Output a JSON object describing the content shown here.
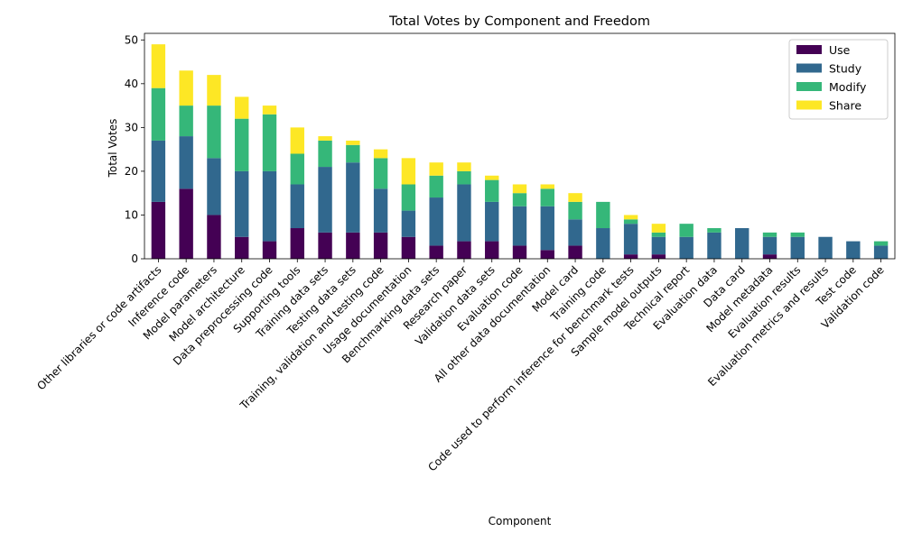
{
  "chart_data": {
    "type": "bar",
    "stacked": true,
    "title": "Total Votes by Component and Freedom",
    "xlabel": "Component",
    "ylabel": "Total Votes",
    "ylim": [
      0,
      51.5
    ],
    "yticks": [
      0,
      10,
      20,
      30,
      40,
      50
    ],
    "legend_position": "top-right",
    "categories": [
      "Other libraries or code artifacts",
      "Inference code",
      "Model parameters",
      "Model architecture",
      "Data preprocessing code",
      "Supporting tools",
      "Training data sets",
      "Testing data sets",
      "Training, validation and testing code",
      "Usage documentation",
      "Benchmarking data sets",
      "Research paper",
      "Validation data sets",
      "Evaluation code",
      "All other data documentation",
      "Model card",
      "Training code",
      "Code used to perform inference for benchmark tests",
      "Sample model outputs",
      "Technical report",
      "Evaluation data",
      "Data card",
      "Model metadata",
      "Evaluation results",
      "Evaluation metrics and results",
      "Test code",
      "Validation code"
    ],
    "series": [
      {
        "name": "Use",
        "color": "#440154",
        "values": [
          13,
          16,
          10,
          5,
          4,
          7,
          6,
          6,
          6,
          5,
          3,
          4,
          4,
          3,
          2,
          3,
          0,
          1,
          1,
          0,
          0,
          0,
          1,
          0,
          0,
          0,
          0
        ]
      },
      {
        "name": "Study",
        "color": "#31688e",
        "values": [
          14,
          12,
          13,
          15,
          16,
          10,
          15,
          16,
          10,
          6,
          11,
          13,
          9,
          9,
          10,
          6,
          7,
          7,
          4,
          5,
          6,
          7,
          4,
          5,
          5,
          4,
          3
        ]
      },
      {
        "name": "Modify",
        "color": "#35b779",
        "values": [
          12,
          7,
          12,
          12,
          13,
          7,
          6,
          4,
          7,
          6,
          5,
          3,
          5,
          3,
          4,
          4,
          6,
          1,
          1,
          3,
          1,
          0,
          1,
          1,
          0,
          0,
          1
        ]
      },
      {
        "name": "Share",
        "color": "#fde725",
        "values": [
          10,
          8,
          7,
          5,
          2,
          6,
          1,
          1,
          2,
          6,
          3,
          2,
          1,
          2,
          1,
          2,
          0,
          1,
          2,
          0,
          0,
          0,
          0,
          0,
          0,
          0,
          0
        ]
      }
    ]
  }
}
